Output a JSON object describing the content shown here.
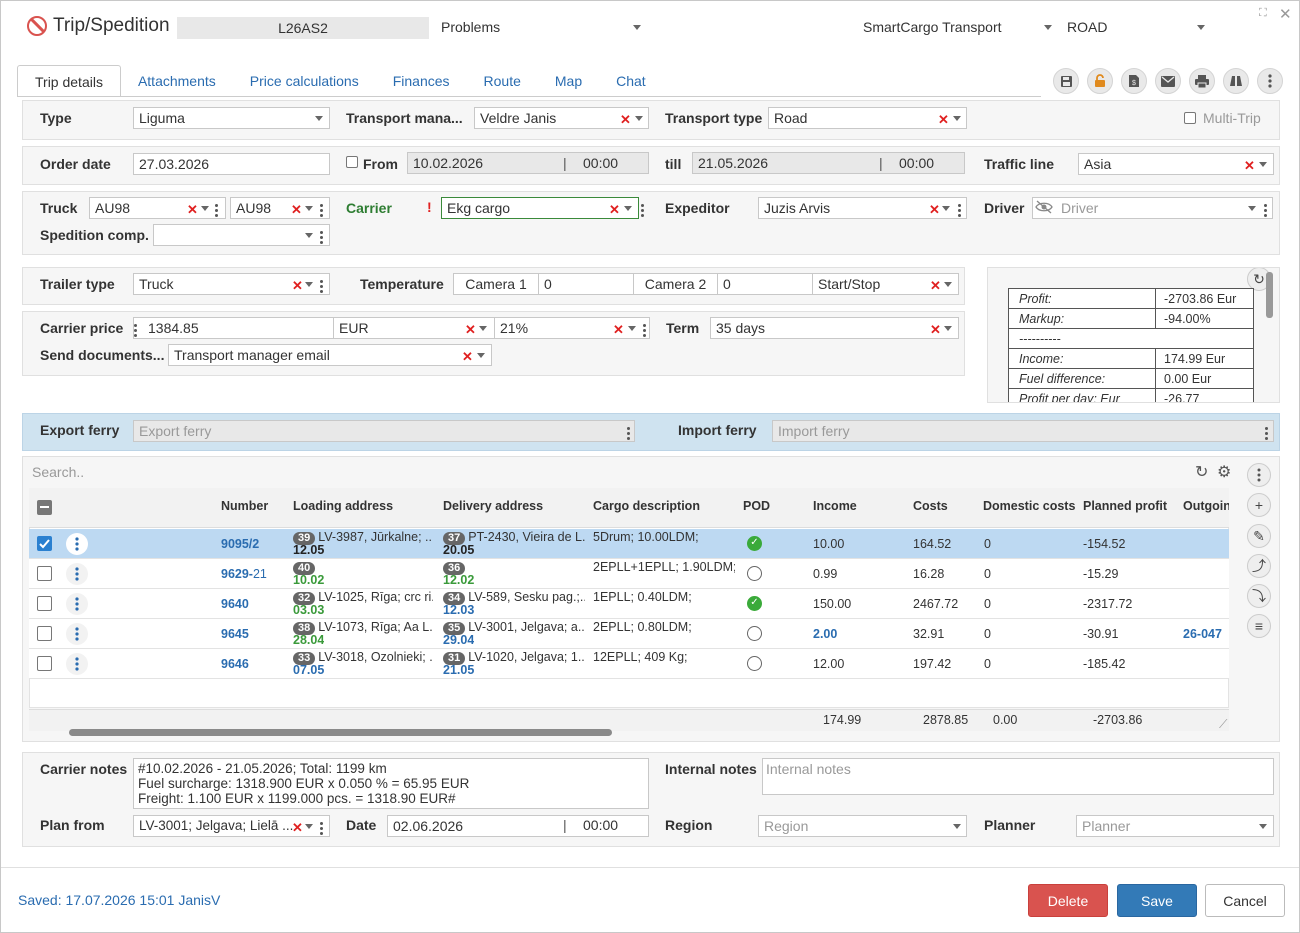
{
  "header": {
    "title": "Trip/Spedition",
    "trip_id": "L26AS2",
    "status": "Problems",
    "company": "SmartCargo Transport",
    "mode": "ROAD"
  },
  "tabs": [
    "Trip details",
    "Attachments",
    "Price calculations",
    "Finances",
    "Route",
    "Map",
    "Chat"
  ],
  "row1": {
    "type_label": "Type",
    "type_value": "Liguma",
    "tm_label": "Transport mana...",
    "tm_value": "Veldre Janis",
    "tt_label": "Transport type",
    "tt_value": "Road",
    "multi_label": "Multi-Trip"
  },
  "row2": {
    "order_label": "Order date",
    "order_value": "27.03.2026",
    "from_label": "From",
    "from_date": "10.02.2026",
    "from_time": "00:00",
    "till_label": "till",
    "till_date": "21.05.2026",
    "till_time": "00:00",
    "traffic_label": "Traffic line",
    "traffic_value": "Asia"
  },
  "row3": {
    "truck_label": "Truck",
    "truck1": "AU98",
    "truck2": "AU98",
    "carrier_label": "Carrier",
    "carrier_flag": "!",
    "carrier_value": "Ekg cargo",
    "expeditor_label": "Expeditor",
    "expeditor_value": "Juzis Arvis",
    "driver_label": "Driver",
    "driver_placeholder": "Driver",
    "spedcomp_label": "Spedition comp."
  },
  "row4": {
    "trailer_label": "Trailer type",
    "trailer_value": "Truck",
    "temp_label": "Temperature",
    "camera1": "Camera 1",
    "camera1_value": "0",
    "camera2": "Camera 2",
    "camera2_value": "0",
    "startstop": "Start/Stop"
  },
  "row5": {
    "price_label": "Carrier price",
    "price_value": "1384.85",
    "currency": "EUR",
    "vat": "21%",
    "term_label": "Term",
    "term_value": "35 days",
    "send_label": "Send documents...",
    "send_value": "Transport manager email"
  },
  "profit": {
    "rows": [
      [
        "Profit:",
        "-2703.86 Eur"
      ],
      [
        "Markup:",
        "-94.00%"
      ],
      [
        "----------",
        ""
      ],
      [
        "Income:",
        "174.99 Eur"
      ],
      [
        "Fuel difference:",
        "0.00 Eur"
      ],
      [
        "Profit per day: Eur",
        "-26.77"
      ]
    ]
  },
  "ferry": {
    "export_label": "Export ferry",
    "export_placeholder": "Export ferry",
    "import_label": "Import ferry",
    "import_placeholder": "Import ferry"
  },
  "table": {
    "search_placeholder": "Search..",
    "columns": [
      "Number",
      "Loading address",
      "Delivery address",
      "Cargo description",
      "POD",
      "Income",
      "Costs",
      "Domestic costs",
      "Planned profit",
      "Outgoing i"
    ],
    "rows": [
      {
        "number": "9095/2",
        "num_suffix": "",
        "lnum": "39",
        "laddr": "LV-3987, Jūrkalne; ...",
        "ldate": "12.05",
        "dnum": "37",
        "daddr": "PT-2430, Vieira de L...",
        "ddate": "20.05",
        "cargo": "5Drum; 10.00LDM;",
        "pod": "ok",
        "income": "10.00",
        "costs": "164.52",
        "dom": "0",
        "profit": "-154.52",
        "out": ""
      },
      {
        "number": "9629-",
        "num_suffix": "21",
        "lnum": "40",
        "laddr": "",
        "ldate": "10.02",
        "dnum": "36",
        "daddr": "",
        "ddate": "12.02",
        "cargo": "2EPLL+1EPLL; 1.90LDM;...",
        "pod": "no",
        "income": "0.99",
        "costs": "16.28",
        "dom": "0",
        "profit": "-15.29",
        "out": ""
      },
      {
        "number": "9640",
        "num_suffix": "",
        "lnum": "32",
        "laddr": "LV-1025, Rīga; crc ri...",
        "ldate": "03.03",
        "dnum": "34",
        "daddr": "LV-589, Sesku pag.;...",
        "ddate": "12.03",
        "cargo": "1EPLL; 0.40LDM;",
        "pod": "ok",
        "income": "150.00",
        "costs": "2467.72",
        "dom": "0",
        "profit": "-2317.72",
        "out": ""
      },
      {
        "number": "9645",
        "num_suffix": "",
        "lnum": "38",
        "laddr": "LV-1073, Rīga; Aa L...",
        "ldate": "28.04",
        "dnum": "35",
        "daddr": "LV-3001, Jelgava; a...",
        "ddate": "29.04",
        "cargo": "2EPLL; 0.80LDM;",
        "pod": "no",
        "income": "2.00",
        "costs": "32.91",
        "dom": "0",
        "profit": "-30.91",
        "out": "26-047"
      },
      {
        "number": "9646",
        "num_suffix": "",
        "lnum": "33",
        "laddr": "LV-3018, Ozolnieki; ...",
        "ldate": "07.05",
        "dnum": "31",
        "daddr": "LV-1020, Jelgava; 1...",
        "ddate": "21.05",
        "cargo": "12EPLL; 409 Kg;",
        "pod": "no",
        "income": "12.00",
        "costs": "197.42",
        "dom": "0",
        "profit": "-185.42",
        "out": ""
      }
    ],
    "totals": {
      "income": "174.99",
      "costs": "2878.85",
      "dom": "0.00",
      "profit": "-2703.86"
    }
  },
  "notes": {
    "carrier_label": "Carrier notes",
    "carrier_lines": [
      "#10.02.2026 - 21.05.2026; Total: 1199 km",
      "Fuel surcharge: 1318.900 EUR x 0.050 % = 65.95 EUR",
      "Freight: 1.100 EUR x 1199.000 pcs. = 1318.90 EUR#"
    ],
    "internal_label": "Internal notes",
    "internal_placeholder": "Internal notes",
    "plan_label": "Plan from",
    "plan_value": "LV-3001; Jelgava; Lielā ...",
    "date_label": "Date",
    "date_value": "02.06.2026",
    "date_time": "00:00",
    "region_label": "Region",
    "region_placeholder": "Region",
    "planner_label": "Planner",
    "planner_placeholder": "Planner"
  },
  "footer": {
    "saved": "Saved: 17.07.2026 15:01 JanisV",
    "delete": "Delete",
    "save": "Save",
    "cancel": "Cancel"
  }
}
